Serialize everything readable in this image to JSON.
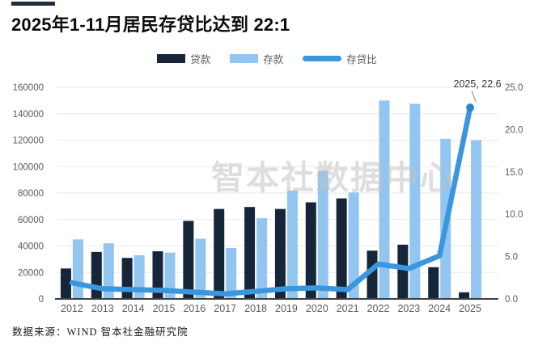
{
  "header": {
    "title": "2025年1-11月居民存贷比达到 22:1"
  },
  "legend": {
    "items": [
      {
        "label": "贷款",
        "type": "bar",
        "color": "#16263a"
      },
      {
        "label": "存款",
        "type": "bar",
        "color": "#92c5f0"
      },
      {
        "label": "存贷比",
        "type": "line",
        "color": "#3a96dd"
      }
    ]
  },
  "watermark": "智本社数据中心",
  "footer": {
    "source": "数据来源：WIND 智本社金融研究院"
  },
  "colors": {
    "loans_bar": "#16263a",
    "deposits_bar": "#92c5f0",
    "ratio_line": "#3a96dd",
    "ratio_end_dot": "#2e86cb",
    "grid": "#e9eaec",
    "axis_text": "#595959",
    "baseline": "#3f3f3f",
    "annotation_text": "#333333",
    "leader_line": "#9a9a9a"
  },
  "chart_data": {
    "type": "bar",
    "subtype": "grouped-bars-with-line",
    "title": "2025年1-11月居民存贷比达到 22:1",
    "categories": [
      "2012",
      "2013",
      "2014",
      "2015",
      "2016",
      "2017",
      "2018",
      "2019",
      "2020",
      "2021",
      "2022",
      "2023",
      "2024",
      "2025"
    ],
    "series": [
      {
        "name": "贷款",
        "type": "bar",
        "axis": "left",
        "color": "#16263a",
        "values": [
          23000,
          35500,
          31000,
          36000,
          59000,
          68000,
          69500,
          68000,
          73000,
          76000,
          36500,
          41000,
          24000,
          5000
        ]
      },
      {
        "name": "存款",
        "type": "bar",
        "axis": "left",
        "color": "#92c5f0",
        "values": [
          45000,
          42000,
          33000,
          35000,
          45500,
          38500,
          61000,
          82000,
          97000,
          80500,
          150000,
          147500,
          121000,
          120000
        ]
      },
      {
        "name": "存贷比",
        "type": "line",
        "axis": "right",
        "color": "#3a96dd",
        "values": [
          1.9,
          1.2,
          1.1,
          1.0,
          0.8,
          0.6,
          0.9,
          1.2,
          1.3,
          1.1,
          4.1,
          3.6,
          5.1,
          22.6
        ]
      }
    ],
    "left_axis": {
      "min": 0,
      "max": 160000,
      "step": 20000,
      "ticks": [
        "0",
        "20000",
        "40000",
        "60000",
        "80000",
        "100000",
        "120000",
        "140000",
        "160000"
      ]
    },
    "right_axis": {
      "min": 0,
      "max": 25,
      "step": 5,
      "ticks": [
        "0.0",
        "5.0",
        "10.0",
        "15.0",
        "20.0",
        "25.0"
      ]
    },
    "annotation": {
      "text": "2025, 22.6",
      "category": "2025",
      "value": 22.6
    },
    "grid": true,
    "legend_position": "top",
    "xlabel": "",
    "ylabel": ""
  }
}
